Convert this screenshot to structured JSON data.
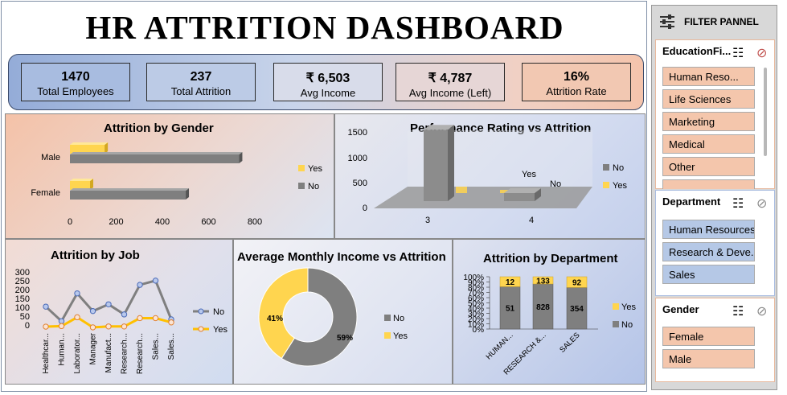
{
  "title": "HR ATTRITION DASHBOARD",
  "kpis": [
    {
      "value": "1470",
      "label": "Total Employees"
    },
    {
      "value": "237",
      "label": "Total Attrition"
    },
    {
      "value": "₹ 6,503",
      "label": "Avg Income"
    },
    {
      "value": "₹ 4,787",
      "label": "Avg Income (Left)"
    },
    {
      "value": "16%",
      "label": "Attrition Rate"
    }
  ],
  "filter": {
    "title": "FILTER PANNEL",
    "education": {
      "title": "EducationFi...",
      "items": [
        "Human Reso...",
        "Life Sciences",
        "Marketing",
        "Medical",
        "Other"
      ]
    },
    "department": {
      "title": "Department",
      "items": [
        "Human Resources",
        "Research & Deve...",
        "Sales"
      ]
    },
    "gender": {
      "title": "Gender",
      "items": [
        "Female",
        "Male"
      ]
    }
  },
  "colors": {
    "no": "#7f7f7f",
    "yes": "#ffd54f"
  },
  "chart_data": [
    {
      "type": "bar",
      "orientation": "horizontal",
      "title": "Attrition by Gender",
      "categories": [
        "Male",
        "Female"
      ],
      "series": [
        {
          "name": "Yes",
          "values": [
            150,
            87
          ]
        },
        {
          "name": "No",
          "values": [
            732,
            501
          ]
        }
      ],
      "xticks": [
        "0",
        "200",
        "400",
        "600",
        "800"
      ],
      "xlim": [
        0,
        800
      ],
      "legend": [
        "Yes",
        "No"
      ]
    },
    {
      "type": "bar",
      "title": "Performance Rating vs Attrition",
      "categories": [
        "3",
        "4"
      ],
      "series": [
        {
          "name": "No",
          "values": [
            1044,
            200
          ]
        },
        {
          "name": "Yes",
          "values": [
            200,
            37
          ]
        }
      ],
      "yticks": [
        "0",
        "500",
        "1000",
        "1500"
      ],
      "ylim": [
        0,
        1500
      ],
      "legend": [
        "No",
        "Yes"
      ],
      "annotations": [
        "Yes",
        "No"
      ]
    },
    {
      "type": "line",
      "title": "Attrition by Job",
      "categories": [
        "Healthcar...",
        "Human...",
        "Laborator...",
        "Manager",
        "Manufact...",
        "Research...",
        "Research...",
        "Sales...",
        "Sales..."
      ],
      "series": [
        {
          "name": "No",
          "values": [
            122,
            40,
            197,
            97,
            135,
            78,
            245,
            269,
            50
          ]
        },
        {
          "name": "Yes",
          "values": [
            9,
            12,
            62,
            5,
            10,
            10,
            57,
            57,
            33
          ]
        }
      ],
      "yticks": [
        "300",
        "250",
        "200",
        "150",
        "100",
        "50",
        "0"
      ],
      "ylim": [
        0,
        300
      ],
      "legend": [
        "No",
        "Yes"
      ]
    },
    {
      "type": "pie",
      "title": "Average Monthly Income vs Attrition",
      "labels": [
        "No",
        "Yes"
      ],
      "values": [
        59,
        41
      ],
      "value_labels": [
        "59%",
        "41%"
      ],
      "legend": [
        "No",
        "Yes"
      ]
    },
    {
      "type": "bar",
      "stacked": true,
      "percent": true,
      "title": "Attrition by Department",
      "categories": [
        "HUMAN...",
        "RESEARCH &...",
        "SALES"
      ],
      "series": [
        {
          "name": "No",
          "values": [
            51,
            828,
            354
          ]
        },
        {
          "name": "Yes",
          "values": [
            12,
            133,
            92
          ]
        }
      ],
      "yticks": [
        "100%",
        "90%",
        "80%",
        "70%",
        "60%",
        "50%",
        "40%",
        "30%",
        "20%",
        "10%",
        "0%"
      ],
      "legend": [
        "Yes",
        "No"
      ]
    }
  ]
}
